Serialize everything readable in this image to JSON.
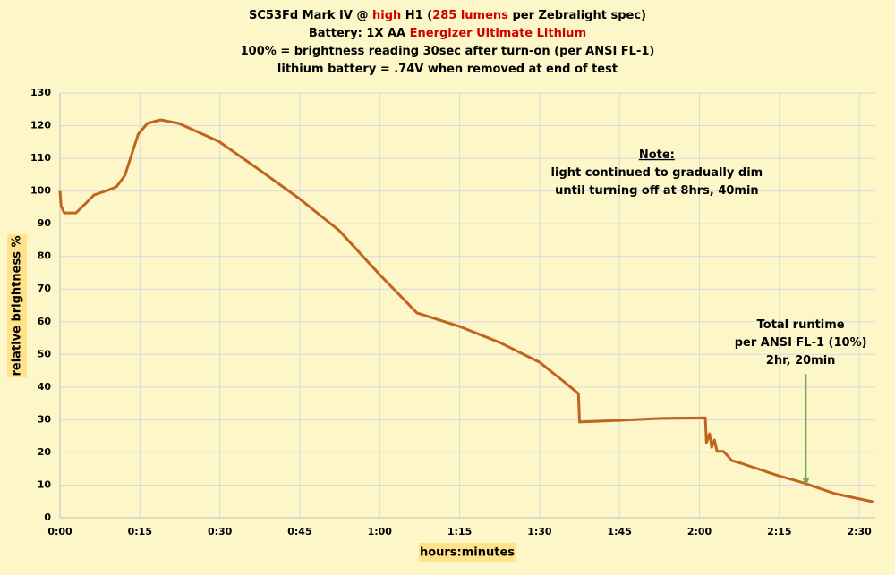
{
  "chart_data": {
    "type": "line",
    "title_lines": [
      [
        {
          "text": "SC53Fd Mark IV @ "
        },
        {
          "text": "high",
          "color": "#d00000"
        },
        {
          "text": " H1 ("
        },
        {
          "text": "285 lumens",
          "color": "#d00000"
        },
        {
          "text": " per Zebralight spec)"
        }
      ],
      [
        {
          "text": "Battery:  1X AA "
        },
        {
          "text": "Energizer Ultimate Lithium",
          "color": "#d00000"
        }
      ],
      [
        {
          "text": "100% = brightness reading 30sec after turn-on (per ANSI FL-1)"
        }
      ],
      [
        {
          "text": "lithium battery = .74V when removed at end of test"
        }
      ]
    ],
    "x_label": "hours:minutes",
    "y_label": "relative  brightness  %",
    "x": [
      0,
      0.2,
      0.8,
      3.0,
      4.7,
      6.4,
      8.9,
      10.6,
      12.2,
      13.6,
      14.7,
      16.4,
      18.9,
      22.3,
      29.8,
      37.4,
      44.9,
      52.4,
      60.0,
      67.0,
      74.9,
      82.6,
      90.0,
      94.3,
      97.3,
      97.5,
      104.9,
      112.7,
      121.1,
      121.3,
      121.9,
      122.3,
      122.8,
      123.3,
      124.5,
      125.3,
      126.1,
      127.8,
      134.8,
      139.5,
      145.4,
      152.6
    ],
    "series": [
      {
        "color": "#c0651f",
        "values": [
          100,
          95.5,
          93.3,
          93.3,
          96,
          98.8,
          100.2,
          101.3,
          104.8,
          112,
          117.4,
          120.7,
          121.8,
          120.7,
          115.2,
          106.5,
          97.7,
          87.9,
          74.4,
          62.7,
          58.6,
          53.6,
          47.6,
          42,
          38,
          29.3,
          29.8,
          30.4,
          30.6,
          23,
          25.7,
          21.6,
          23.8,
          20.3,
          20.3,
          18.9,
          17.5,
          16.7,
          12.9,
          10.7,
          7.4,
          4.9
        ]
      }
    ],
    "xlim": [
      0,
      153
    ],
    "ylim": [
      0,
      130
    ],
    "xticks": [
      {
        "value": 0,
        "label": "0:00"
      },
      {
        "value": 15,
        "label": "0:15"
      },
      {
        "value": 30,
        "label": "0:30"
      },
      {
        "value": 45,
        "label": "0:45"
      },
      {
        "value": 60,
        "label": "1:00"
      },
      {
        "value": 75,
        "label": "1:15"
      },
      {
        "value": 90,
        "label": "1:30"
      },
      {
        "value": 105,
        "label": "1:45"
      },
      {
        "value": 120,
        "label": "2:00"
      },
      {
        "value": 135,
        "label": "2:15"
      },
      {
        "value": 150,
        "label": "2:30"
      }
    ],
    "yticks": [
      0,
      10,
      20,
      30,
      40,
      50,
      60,
      70,
      80,
      90,
      100,
      110,
      120,
      130
    ],
    "grid": true,
    "annotations": [
      {
        "lines": [
          "Note:",
          "light continued to gradually dim",
          "until turning off at  8hrs, 40min"
        ],
        "x": 112,
        "y": 111
      },
      {
        "lines": [
          "Total runtime",
          "per ANSI FL-1 (10%)",
          "2hr, 20min"
        ],
        "x": 139,
        "y": 59
      },
      {
        "arrow_x": 140,
        "arrow_from": 44,
        "arrow_to": 10,
        "color": "#70ad47"
      }
    ]
  }
}
